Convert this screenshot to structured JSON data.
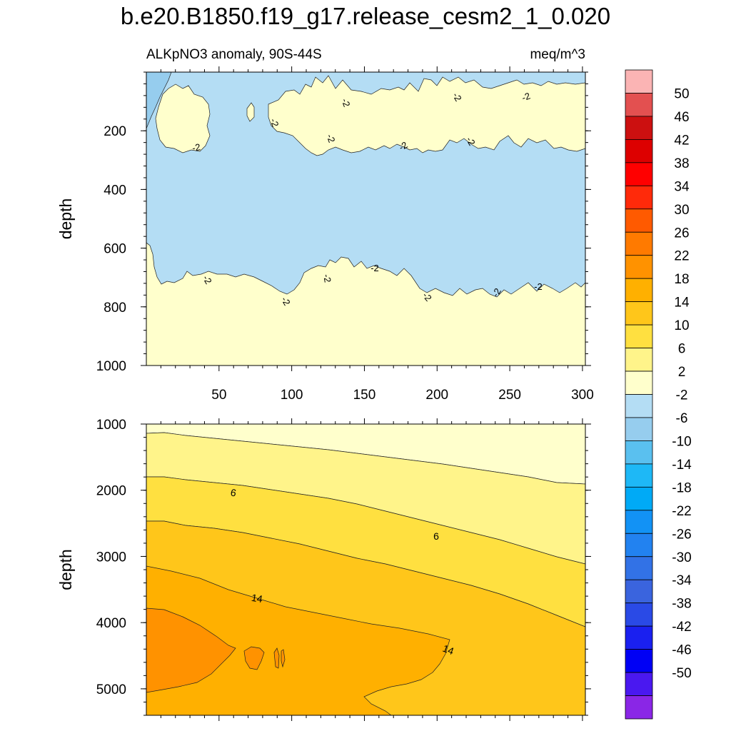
{
  "title": "b.e20.B1850.f19_g17.release_cesm2_1_0.020",
  "chart_data": {
    "type": "contour",
    "variable": "ALKpNO3 anomaly, 90S-44S",
    "units": "meq/m^3",
    "x_ticks": [
      "50",
      "100",
      "150",
      "200",
      "250",
      "300"
    ],
    "xlim": [
      0,
      302
    ],
    "panels": [
      {
        "name": "upper",
        "ylabel": "depth",
        "ylim": [
          0,
          1000
        ],
        "y_ticks": [
          "200",
          "400",
          "600",
          "800",
          "1000"
        ],
        "contour_labels": [
          "-2",
          "-2",
          "-2",
          "-2",
          "-2",
          "-2",
          "-2",
          "-2",
          "-2",
          "-2",
          "-2",
          "-2",
          "-2",
          "-2",
          "-2",
          "-2"
        ]
      },
      {
        "name": "lower",
        "ylabel": "depth",
        "ylim": [
          1000,
          5400
        ],
        "y_ticks": [
          "1000",
          "2000",
          "3000",
          "4000",
          "5000"
        ],
        "contour_labels": [
          "6",
          "6",
          "14",
          "14"
        ]
      }
    ],
    "colorbar": {
      "levels": [
        "50",
        "46",
        "42",
        "38",
        "34",
        "30",
        "26",
        "22",
        "18",
        "14",
        "10",
        "6",
        "2",
        "-2",
        "-6",
        "-10",
        "-14",
        "-18",
        "-22",
        "-26",
        "-30",
        "-34",
        "-38",
        "-42",
        "-46",
        "-50"
      ],
      "colors": [
        "#fbb4b4",
        "#e35050",
        "#cc1010",
        "#dd0000",
        "#ff0000",
        "#ff2a0a",
        "#ff5a00",
        "#ff7a00",
        "#ff9200",
        "#ffb000",
        "#ffc61a",
        "#ffe040",
        "#fff48a",
        "#ffffcc",
        "#b4ddf4",
        "#96cdee",
        "#5ac0ef",
        "#1eb8f6",
        "#00aaf6",
        "#1292f5",
        "#2282f0",
        "#3272e6",
        "#3a64de",
        "#2a4ae6",
        "#1a20f0",
        "#0000f5",
        "#4a18f0",
        "#8a26e6"
      ]
    }
  }
}
